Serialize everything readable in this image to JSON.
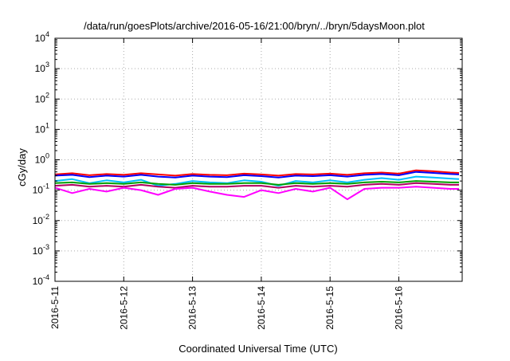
{
  "chart_data": {
    "type": "line",
    "title": "/data/run/goesPlots/archive/2016-05-16/21:00/bryn/../bryn/5daysMoon.plot",
    "xlabel": "Coordinated Universal Time (UTC)",
    "ylabel": "cGy/day",
    "yscale": "log",
    "ylim": [
      0.0001,
      10000
    ],
    "xlim": [
      "2016-05-11",
      "2016-05-16 21:00"
    ],
    "grid": true,
    "x_ticks": [
      "2016-5-11",
      "2016-5-12",
      "2016-5-13",
      "2016-5-14",
      "2016-5-15",
      "2016-5-16"
    ],
    "y_ticks": [
      {
        "base": "10",
        "exp": "-4",
        "value": 0.0001
      },
      {
        "base": "10",
        "exp": "-3",
        "value": 0.001
      },
      {
        "base": "10",
        "exp": "-2",
        "value": 0.01
      },
      {
        "base": "10",
        "exp": "-1",
        "value": 0.1
      },
      {
        "base": "10",
        "exp": "0",
        "value": 1
      },
      {
        "base": "10",
        "exp": "1",
        "value": 10
      },
      {
        "base": "10",
        "exp": "2",
        "value": 100
      },
      {
        "base": "10",
        "exp": "3",
        "value": 1000
      },
      {
        "base": "10",
        "exp": "4",
        "value": 10000
      }
    ],
    "x_days": [
      0,
      0.25,
      0.5,
      0.75,
      1,
      1.25,
      1.5,
      1.75,
      2,
      2.25,
      2.5,
      2.75,
      3,
      3.25,
      3.5,
      3.75,
      4,
      4.25,
      4.5,
      4.75,
      5,
      5.25,
      5.5,
      5.75,
      5.875
    ],
    "series": [
      {
        "color": "#ff0000",
        "values": [
          0.33,
          0.36,
          0.31,
          0.34,
          0.32,
          0.36,
          0.33,
          0.3,
          0.34,
          0.32,
          0.31,
          0.35,
          0.33,
          0.3,
          0.34,
          0.33,
          0.35,
          0.32,
          0.36,
          0.38,
          0.35,
          0.45,
          0.42,
          0.38,
          0.37
        ]
      },
      {
        "color": "#0000ff",
        "values": [
          0.3,
          0.32,
          0.27,
          0.3,
          0.28,
          0.32,
          0.28,
          0.26,
          0.3,
          0.28,
          0.27,
          0.31,
          0.29,
          0.26,
          0.3,
          0.29,
          0.31,
          0.28,
          0.32,
          0.34,
          0.31,
          0.4,
          0.37,
          0.34,
          0.33
        ]
      },
      {
        "color": "#00bfff",
        "values": [
          0.2,
          0.23,
          0.17,
          0.21,
          0.18,
          0.22,
          0.14,
          0.16,
          0.2,
          0.18,
          0.17,
          0.21,
          0.19,
          0.14,
          0.2,
          0.18,
          0.21,
          0.18,
          0.22,
          0.25,
          0.22,
          0.28,
          0.26,
          0.24,
          0.23
        ]
      },
      {
        "color": "#00a000",
        "values": [
          0.17,
          0.18,
          0.16,
          0.17,
          0.16,
          0.18,
          0.16,
          0.15,
          0.17,
          0.16,
          0.16,
          0.17,
          0.17,
          0.15,
          0.17,
          0.16,
          0.17,
          0.16,
          0.18,
          0.19,
          0.18,
          0.2,
          0.19,
          0.18,
          0.18
        ]
      },
      {
        "color": "#b00060",
        "values": [
          0.14,
          0.15,
          0.13,
          0.14,
          0.13,
          0.15,
          0.13,
          0.12,
          0.14,
          0.13,
          0.13,
          0.14,
          0.14,
          0.12,
          0.14,
          0.13,
          0.14,
          0.13,
          0.15,
          0.16,
          0.15,
          0.17,
          0.16,
          0.15,
          0.15
        ]
      },
      {
        "color": "#ff00ff",
        "values": [
          0.12,
          0.08,
          0.11,
          0.09,
          0.12,
          0.1,
          0.07,
          0.11,
          0.12,
          0.09,
          0.07,
          0.06,
          0.1,
          0.08,
          0.11,
          0.09,
          0.12,
          0.05,
          0.11,
          0.12,
          0.12,
          0.13,
          0.12,
          0.11,
          0.11
        ]
      }
    ]
  }
}
